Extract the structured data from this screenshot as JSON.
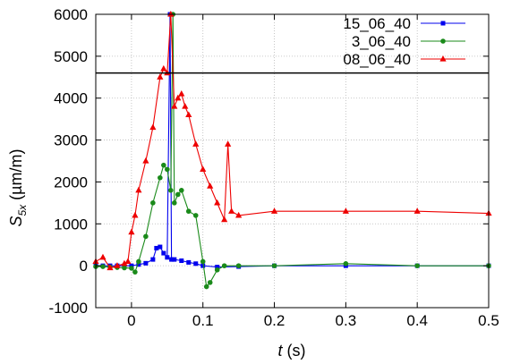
{
  "chart_data": {
    "type": "line",
    "xlabel_var": "t",
    "xlabel_unit": " (s)",
    "ylabel_var": "S",
    "ylabel_sub": "5x",
    "ylabel_unit": " (µm/m)",
    "xlim": [
      -0.05,
      0.5
    ],
    "ylim": [
      -1000,
      6000
    ],
    "xticks": [
      0,
      0.1,
      0.2,
      0.3,
      0.4,
      0.5
    ],
    "xtick_labels": [
      "0",
      "0.1",
      "0.2",
      "0.3",
      "0.4",
      "0.5"
    ],
    "yticks": [
      -1000,
      0,
      1000,
      2000,
      3000,
      4000,
      5000,
      6000
    ],
    "ytick_labels": [
      "-1000",
      "0",
      "1000",
      "2000",
      "3000",
      "4000",
      "5000",
      "6000"
    ],
    "axis_break_y": 4600,
    "grid": true,
    "legend_position": "top-right",
    "series": [
      {
        "name": "15_06_40",
        "color": "#0000ee",
        "marker": "square",
        "x": [
          -0.05,
          -0.04,
          -0.03,
          -0.02,
          -0.01,
          0.0,
          0.01,
          0.02,
          0.03,
          0.035,
          0.04,
          0.045,
          0.05,
          0.054,
          0.056,
          0.06,
          0.07,
          0.08,
          0.09,
          0.1,
          0.12,
          0.15,
          0.2,
          0.3,
          0.4,
          0.5
        ],
        "values": [
          0,
          0,
          0,
          0,
          0,
          0,
          30,
          60,
          150,
          420,
          450,
          300,
          200,
          6000,
          150,
          150,
          120,
          80,
          50,
          0,
          -30,
          -20,
          0,
          0,
          0,
          0
        ]
      },
      {
        "name": "3_06_40",
        "color": "#1a8a1a",
        "marker": "circle",
        "x": [
          -0.05,
          -0.04,
          -0.03,
          -0.02,
          -0.01,
          0.0,
          0.005,
          0.01,
          0.02,
          0.03,
          0.04,
          0.045,
          0.05,
          0.055,
          0.058,
          0.06,
          0.065,
          0.07,
          0.08,
          0.09,
          0.1,
          0.105,
          0.11,
          0.12,
          0.13,
          0.15,
          0.2,
          0.3,
          0.4,
          0.5
        ],
        "values": [
          -20,
          -20,
          -30,
          -40,
          -50,
          -60,
          -150,
          100,
          700,
          1500,
          2100,
          2400,
          2300,
          1800,
          6000,
          1500,
          1700,
          1800,
          1300,
          1200,
          100,
          -500,
          -400,
          -100,
          0,
          0,
          0,
          50,
          0,
          0
        ]
      },
      {
        "name": "08_06_40",
        "color": "#ee0000",
        "marker": "triangle",
        "x": [
          -0.05,
          -0.04,
          -0.03,
          -0.02,
          -0.01,
          -0.005,
          0.0,
          0.005,
          0.01,
          0.02,
          0.03,
          0.04,
          0.045,
          0.05,
          0.055,
          0.06,
          0.065,
          0.07,
          0.075,
          0.08,
          0.09,
          0.1,
          0.11,
          0.12,
          0.13,
          0.135,
          0.14,
          0.15,
          0.2,
          0.3,
          0.4,
          0.5
        ],
        "values": [
          100,
          200,
          -50,
          0,
          50,
          100,
          800,
          1200,
          1800,
          2500,
          3300,
          4500,
          4700,
          4600,
          6000,
          3800,
          4000,
          4100,
          3800,
          3600,
          2900,
          2300,
          1900,
          1500,
          1100,
          2900,
          1300,
          1200,
          1300,
          1300,
          1300,
          1250
        ]
      }
    ]
  }
}
